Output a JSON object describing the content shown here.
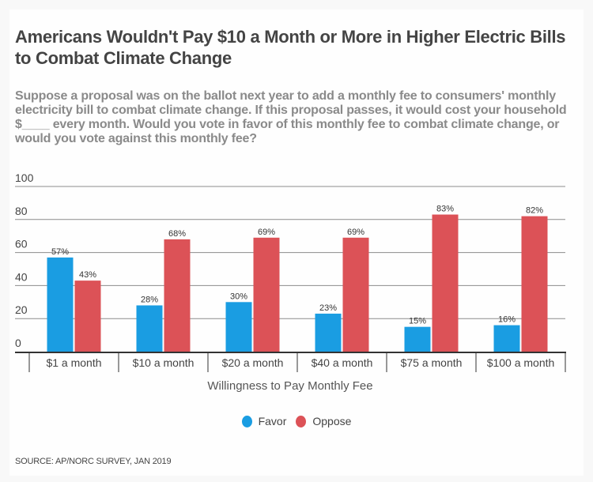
{
  "header": {
    "title": "Americans Wouldn't Pay $10 a Month or More in Higher Electric Bills to Combat Climate Change",
    "subtitle": "Suppose a proposal was on the ballot next year to add a monthly fee to consumers' monthly electricity bill to combat climate change. If this proposal passes, it would cost your household $____ every month. Would you vote in favor of this monthly fee to combat climate change, or would you vote against this monthly fee?"
  },
  "footer": {
    "source": "SOURCE: AP/NORC SURVEY, JAN 2019"
  },
  "chart_data": {
    "type": "bar",
    "title": "Americans Wouldn't Pay $10 a Month or More in Higher Electric Bills to Combat Climate Change",
    "xlabel": "Willingness to Pay Monthly Fee",
    "ylabel": "",
    "categories": [
      "$1 a month",
      "$10 a month",
      "$20 a month",
      "$40 a month",
      "$75 a month",
      "$100 a month"
    ],
    "series": [
      {
        "name": "Favor",
        "color": "#1a9de2",
        "values": [
          57,
          28,
          30,
          23,
          15,
          16
        ]
      },
      {
        "name": "Oppose",
        "color": "#dc5257",
        "values": [
          43,
          68,
          69,
          69,
          83,
          82
        ]
      }
    ],
    "value_suffix": "%",
    "ylim": [
      0,
      100
    ],
    "yticks": [
      0,
      20,
      40,
      60,
      80,
      100
    ],
    "grid": true,
    "legend": "bottom-center"
  }
}
